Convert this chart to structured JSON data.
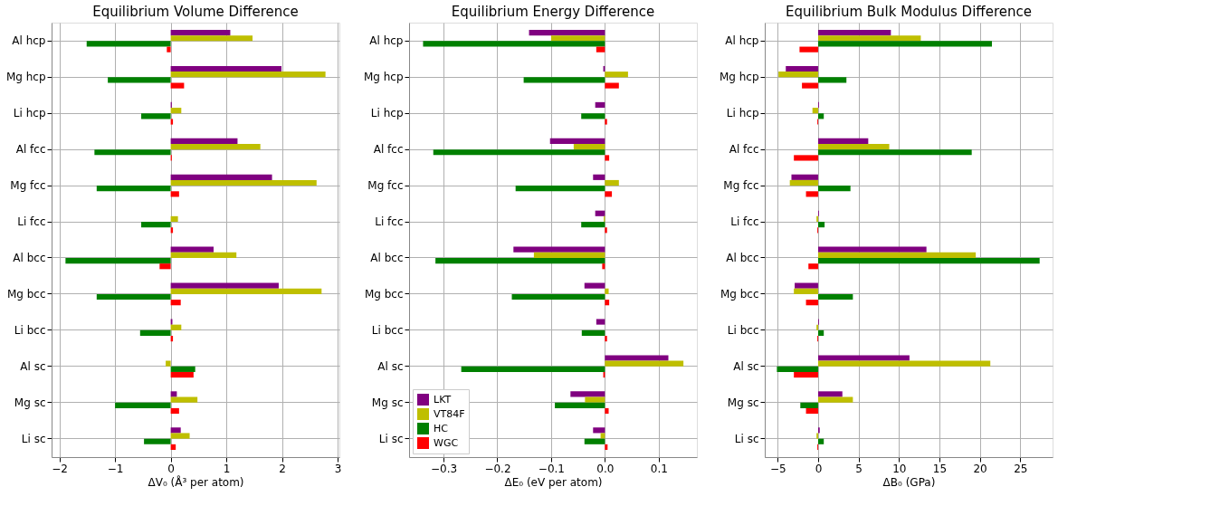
{
  "chart_data": [
    {
      "type": "bar",
      "orientation": "horizontal",
      "title": "Equilibrium Volume Difference",
      "xlabel": "ΔV₀  (Å³ per atom)",
      "categories": [
        "Al hcp",
        "Mg hcp",
        "Li hcp",
        "Al fcc",
        "Mg fcc",
        "Li fcc",
        "Al bcc",
        "Mg bcc",
        "Li bcc",
        "Al sc",
        "Mg sc",
        "Li sc"
      ],
      "series": [
        {
          "color": "#800080",
          "values": [
            1.07,
            1.99,
            0.02,
            1.2,
            1.82,
            null,
            0.77,
            1.94,
            0.03,
            null,
            0.11,
            0.18
          ]
        },
        {
          "color": "#bfbf00",
          "values": [
            1.47,
            2.78,
            0.19,
            1.61,
            2.62,
            0.13,
            1.18,
            2.71,
            0.19,
            -0.09,
            0.48,
            0.34
          ]
        },
        {
          "color": "#008000",
          "values": [
            -1.51,
            -1.13,
            -0.53,
            -1.37,
            -1.33,
            -0.53,
            -1.89,
            -1.33,
            -0.55,
            0.44,
            -1.0,
            -0.48
          ]
        },
        {
          "color": "#ff0000",
          "values": [
            -0.07,
            0.24,
            0.04,
            0.02,
            0.15,
            0.04,
            -0.2,
            0.18,
            0.04,
            0.41,
            0.15,
            0.09
          ]
        }
      ],
      "xlim": [
        -2.14,
        3.03
      ],
      "xticks": [
        {
          "value": -2,
          "label": "−2"
        },
        {
          "value": -1,
          "label": "−1"
        },
        0,
        1,
        2,
        3
      ],
      "grid": true
    },
    {
      "type": "bar",
      "orientation": "horizontal",
      "title": "Equilibrium Energy Difference",
      "xlabel": "ΔE₀  (eV per atom)",
      "categories": [
        "Al hcp",
        "Mg hcp",
        "Li hcp",
        "Al fcc",
        "Mg fcc",
        "Li fcc",
        "Al bcc",
        "Mg bcc",
        "Li bcc",
        "Al sc",
        "Mg sc",
        "Li sc"
      ],
      "series": [
        {
          "name": "LKT",
          "color": "#800080",
          "values": [
            -0.141,
            -0.003,
            -0.018,
            -0.102,
            -0.022,
            -0.018,
            -0.17,
            -0.038,
            -0.016,
            0.118,
            -0.064,
            -0.022
          ]
        },
        {
          "name": "VT84F",
          "color": "#bfbf00",
          "values": [
            -0.1,
            0.043,
            0,
            -0.058,
            0.026,
            -0.002,
            -0.132,
            0.007,
            0,
            0.146,
            -0.037,
            -0.008
          ]
        },
        {
          "name": "HC",
          "color": "#008000",
          "values": [
            -0.338,
            -0.151,
            -0.044,
            -0.319,
            -0.166,
            -0.044,
            -0.315,
            -0.173,
            -0.043,
            -0.267,
            -0.093,
            -0.038
          ]
        },
        {
          "name": "WGC",
          "color": "#ff0000",
          "values": [
            -0.016,
            0.026,
            0.004,
            0.008,
            0.013,
            0.004,
            -0.005,
            0.008,
            0.004,
            -0.003,
            0.007,
            0.005
          ]
        }
      ],
      "xlim": [
        -0.364,
        0.171
      ],
      "xticks": [
        {
          "value": -0.3,
          "label": "−0.3"
        },
        {
          "value": -0.2,
          "label": "−0.2"
        },
        {
          "value": -0.1,
          "label": "−0.1"
        },
        {
          "value": 0,
          "label": "0.0"
        },
        0.1
      ],
      "grid": true,
      "legend": "bottom left"
    },
    {
      "type": "bar",
      "orientation": "horizontal",
      "title": "Equilibrium Bulk Modulus Difference",
      "xlabel": "ΔB₀ (GPa)",
      "categories": [
        "Al hcp",
        "Mg hcp",
        "Li hcp",
        "Al fcc",
        "Mg fcc",
        "Li fcc",
        "Al bcc",
        "Mg bcc",
        "Li bcc",
        "Al sc",
        "Mg sc",
        "Li sc"
      ],
      "series": [
        {
          "color": "#800080",
          "values": [
            9.0,
            -4.0,
            0.1,
            6.2,
            -3.3,
            0.1,
            13.4,
            -2.9,
            0.1,
            11.3,
            3.0,
            0.2
          ]
        },
        {
          "color": "#bfbf00",
          "values": [
            12.7,
            -4.9,
            -0.7,
            8.8,
            -3.5,
            -0.2,
            19.5,
            -3.0,
            -0.2,
            21.3,
            4.3,
            -0.2
          ]
        },
        {
          "color": "#008000",
          "values": [
            21.5,
            3.5,
            0.7,
            19.0,
            4.0,
            0.8,
            27.4,
            4.3,
            0.7,
            -5.1,
            -2.2,
            0.7
          ]
        },
        {
          "color": "#ff0000",
          "values": [
            -2.3,
            -2.0,
            -0.1,
            -3.0,
            -1.5,
            -0.1,
            -1.2,
            -1.5,
            -0.1,
            -3.0,
            -1.5,
            -0.1
          ]
        }
      ],
      "xlim": [
        -6.6,
        29.0
      ],
      "xticks": [
        {
          "value": -5,
          "label": "−5"
        },
        0,
        5,
        10,
        15,
        20,
        25
      ],
      "grid": true
    }
  ]
}
